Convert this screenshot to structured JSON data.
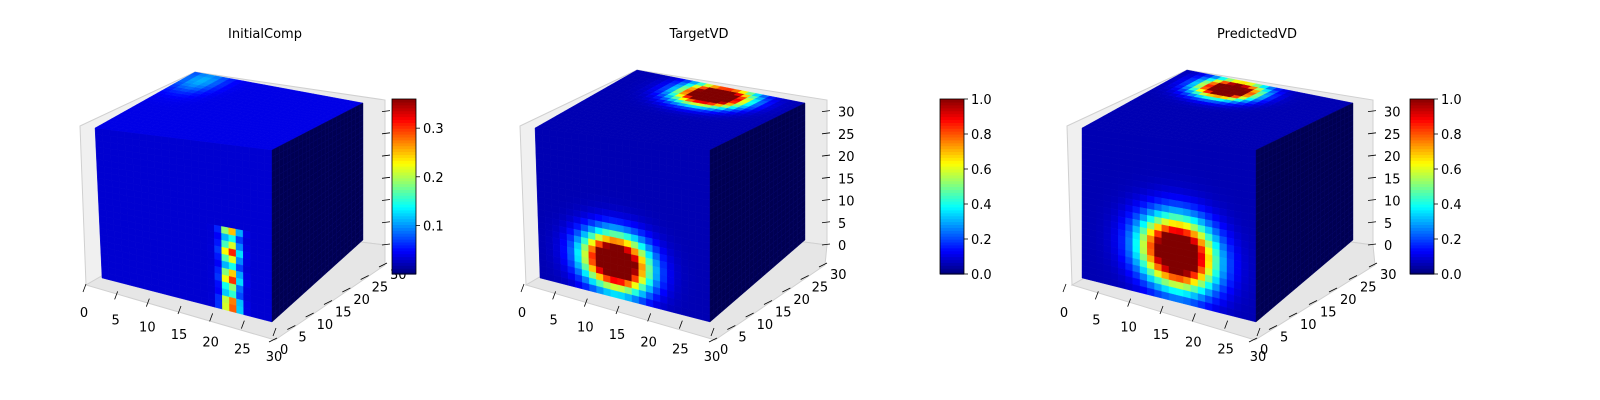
{
  "chart_data": [
    {
      "type": "heatmap",
      "title": "InitialComp",
      "x_ticks": [
        "0",
        "5",
        "10",
        "15",
        "20",
        "25",
        "30"
      ],
      "y_ticks": [
        "0",
        "5",
        "10",
        "15",
        "20",
        "25",
        "30"
      ],
      "z_ticks": [],
      "colorbar": {
        "min": 0.0,
        "max": 0.36,
        "ticks": [
          "0.1",
          "0.2",
          "0.3"
        ],
        "tick_values": [
          0.1,
          0.2,
          0.3
        ],
        "colormap": "jet"
      },
      "grid": true
    },
    {
      "type": "heatmap",
      "title": "TargetVD",
      "x_ticks": [
        "0",
        "5",
        "10",
        "15",
        "20",
        "25",
        "30"
      ],
      "y_ticks": [
        "0",
        "5",
        "10",
        "15",
        "20",
        "25",
        "30"
      ],
      "z_ticks": [
        "0",
        "5",
        "10",
        "15",
        "20",
        "25",
        "30"
      ],
      "colorbar": {
        "min": 0.0,
        "max": 1.0,
        "ticks": [
          "0.0",
          "0.2",
          "0.4",
          "0.6",
          "0.8",
          "1.0"
        ],
        "tick_values": [
          0.0,
          0.2,
          0.4,
          0.6,
          0.8,
          1.0
        ],
        "colormap": "jet"
      },
      "grid": true
    },
    {
      "type": "heatmap",
      "title": "PredictedVD",
      "x_ticks": [
        "0",
        "5",
        "10",
        "15",
        "20",
        "25",
        "30"
      ],
      "y_ticks": [
        "0",
        "5",
        "10",
        "15",
        "20",
        "25",
        "30"
      ],
      "z_ticks": [
        "0",
        "5",
        "10",
        "15",
        "20",
        "25",
        "30"
      ],
      "colorbar": {
        "min": 0.0,
        "max": 1.0,
        "ticks": [
          "0.0",
          "0.2",
          "0.4",
          "0.6",
          "0.8",
          "1.0"
        ],
        "tick_values": [
          0.0,
          0.2,
          0.4,
          0.6,
          0.8,
          1.0
        ],
        "colormap": "jet"
      },
      "grid": true
    }
  ]
}
